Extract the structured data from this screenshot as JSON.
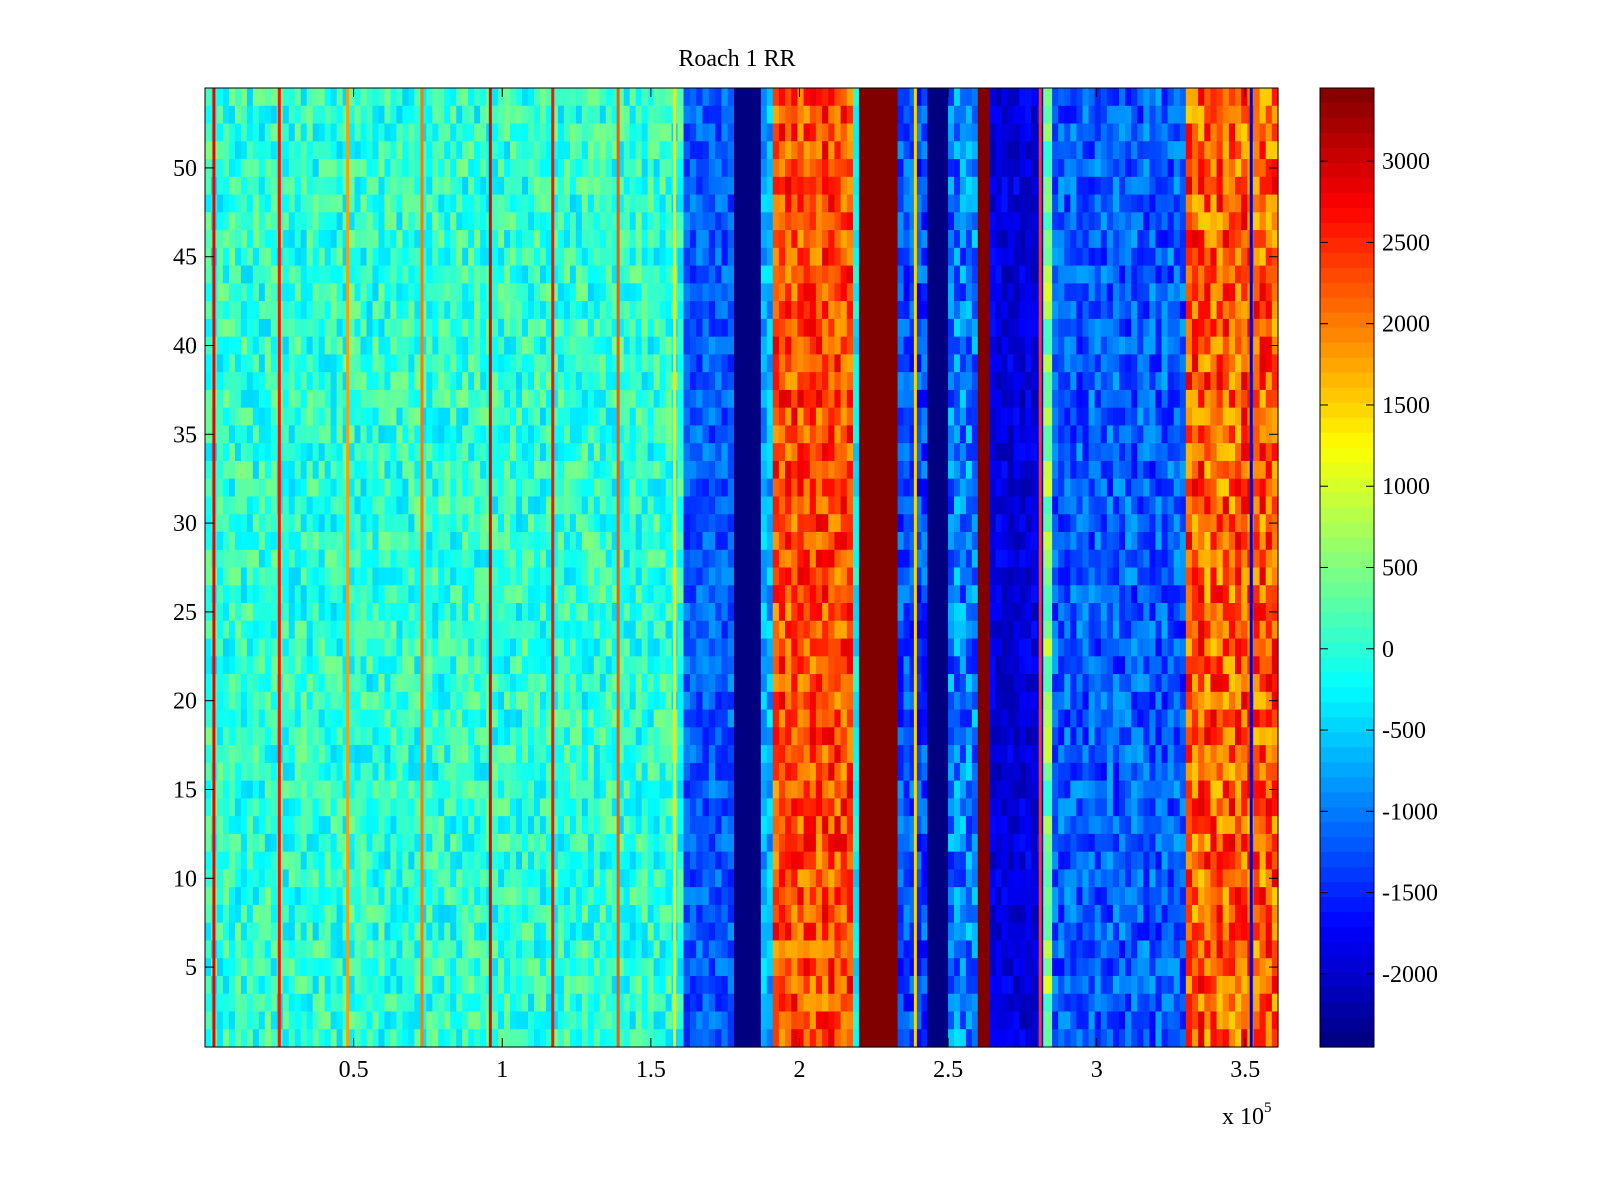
{
  "chart_data": {
    "type": "heatmap",
    "title": "Roach 1 RR",
    "xlabel": "",
    "ylabel": "",
    "x_multiplier_label": "x 10",
    "x_multiplier_exponent": "5",
    "xlim": [
      0,
      361000
    ],
    "ylim": [
      0.5,
      54.5
    ],
    "x_ticks": [
      {
        "value": 50000,
        "label": "0.5"
      },
      {
        "value": 100000,
        "label": "1"
      },
      {
        "value": 150000,
        "label": "1.5"
      },
      {
        "value": 200000,
        "label": "2"
      },
      {
        "value": 250000,
        "label": "2.5"
      },
      {
        "value": 300000,
        "label": "3"
      },
      {
        "value": 350000,
        "label": "3.5"
      }
    ],
    "y_ticks": [
      {
        "value": 5,
        "label": "5"
      },
      {
        "value": 10,
        "label": "10"
      },
      {
        "value": 15,
        "label": "15"
      },
      {
        "value": 20,
        "label": "20"
      },
      {
        "value": 25,
        "label": "25"
      },
      {
        "value": 30,
        "label": "30"
      },
      {
        "value": 35,
        "label": "35"
      },
      {
        "value": 40,
        "label": "40"
      },
      {
        "value": 45,
        "label": "45"
      },
      {
        "value": 50,
        "label": "50"
      }
    ],
    "rows": 54,
    "colorbar": {
      "colormap": "jet",
      "clim": [
        -2450,
        3450
      ],
      "ticks": [
        {
          "value": 3000,
          "label": "3000"
        },
        {
          "value": 2500,
          "label": "2500"
        },
        {
          "value": 2000,
          "label": "2000"
        },
        {
          "value": 1500,
          "label": "1500"
        },
        {
          "value": 1000,
          "label": "1000"
        },
        {
          "value": 500,
          "label": "500"
        },
        {
          "value": 0,
          "label": "0"
        },
        {
          "value": -500,
          "label": "-500"
        },
        {
          "value": -1000,
          "label": "-1000"
        },
        {
          "value": -1500,
          "label": "-1500"
        },
        {
          "value": -2000,
          "label": "-2000"
        }
      ]
    },
    "bands": [
      {
        "x0": 0,
        "x1": 161000,
        "mean_value": 0,
        "variation": 500
      },
      {
        "x0": 161000,
        "x1": 178000,
        "mean_value": -1200,
        "variation": 400
      },
      {
        "x0": 178000,
        "x1": 187000,
        "mean_value": -2450,
        "variation": 0
      },
      {
        "x0": 187000,
        "x1": 191000,
        "mean_value": -700,
        "variation": 400
      },
      {
        "x0": 191000,
        "x1": 218000,
        "mean_value": 2300,
        "variation": 600
      },
      {
        "x0": 218000,
        "x1": 220000,
        "mean_value": -300,
        "variation": 300
      },
      {
        "x0": 220000,
        "x1": 233000,
        "mean_value": 3450,
        "variation": 0
      },
      {
        "x0": 233000,
        "x1": 243000,
        "mean_value": -1300,
        "variation": 500
      },
      {
        "x0": 243000,
        "x1": 250000,
        "mean_value": -2450,
        "variation": 0
      },
      {
        "x0": 250000,
        "x1": 260000,
        "mean_value": -1000,
        "variation": 600
      },
      {
        "x0": 260000,
        "x1": 264000,
        "mean_value": 3450,
        "variation": 0
      },
      {
        "x0": 264000,
        "x1": 282000,
        "mean_value": -1900,
        "variation": 300
      },
      {
        "x0": 282000,
        "x1": 285000,
        "mean_value": 600,
        "variation": 600
      },
      {
        "x0": 285000,
        "x1": 330000,
        "mean_value": -1200,
        "variation": 500
      },
      {
        "x0": 330000,
        "x1": 361000,
        "mean_value": 2200,
        "variation": 700
      }
    ],
    "spike_lines": [
      {
        "x": 3000,
        "value": 2800
      },
      {
        "x": 25000,
        "value": 2600
      },
      {
        "x": 48000,
        "value": 1800
      },
      {
        "x": 73000,
        "value": 2000
      },
      {
        "x": 96000,
        "value": 2800
      },
      {
        "x": 117000,
        "value": 2600
      },
      {
        "x": 139000,
        "value": 2200
      },
      {
        "x": 158000,
        "value": 1400
      },
      {
        "x": 239000,
        "value": 1500
      },
      {
        "x": 281000,
        "value": 2400
      },
      {
        "x": 352000,
        "value": -2000
      }
    ],
    "grid": false
  }
}
